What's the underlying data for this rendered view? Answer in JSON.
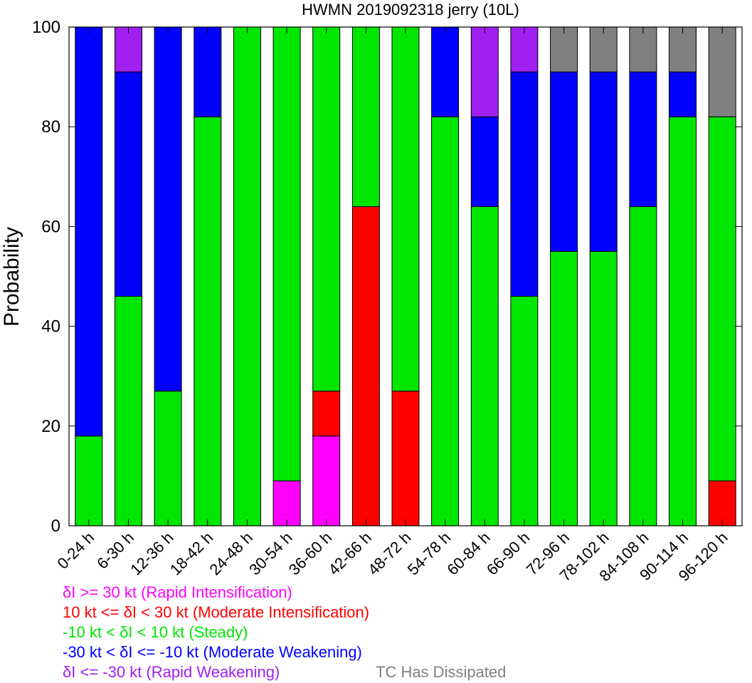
{
  "chart_data": {
    "type": "bar",
    "stacked": true,
    "title": "HWMN 2019092318 jerry (10L)",
    "xlabel": "",
    "ylabel": "Probability",
    "ylim": [
      0,
      100
    ],
    "yticks": [
      0,
      20,
      40,
      60,
      80,
      100
    ],
    "grid": false,
    "categories": [
      "0-24 h",
      "6-30 h",
      "12-36 h",
      "18-42 h",
      "24-48 h",
      "30-54 h",
      "36-60 h",
      "42-66 h",
      "48-72 h",
      "54-78 h",
      "60-84 h",
      "66-90 h",
      "72-96 h",
      "78-102 h",
      "84-108 h",
      "90-114 h",
      "96-120 h"
    ],
    "series": [
      {
        "key": "ri",
        "color": "#ff00ff",
        "values": [
          0,
          0,
          0,
          0,
          0,
          9,
          18,
          0,
          0,
          0,
          0,
          0,
          0,
          0,
          0,
          0,
          0
        ]
      },
      {
        "key": "mi",
        "color": "#ff0000",
        "values": [
          0,
          0,
          0,
          0,
          0,
          0,
          9,
          64,
          27,
          0,
          0,
          0,
          0,
          0,
          0,
          0,
          9
        ]
      },
      {
        "key": "steady",
        "color": "#00e600",
        "values": [
          18,
          46,
          27,
          82,
          100,
          91,
          73,
          36,
          73,
          82,
          64,
          46,
          55,
          55,
          64,
          82,
          73
        ]
      },
      {
        "key": "mw",
        "color": "#0000ff",
        "values": [
          82,
          45,
          73,
          18,
          0,
          0,
          0,
          0,
          0,
          18,
          18,
          45,
          36,
          36,
          27,
          9,
          0
        ]
      },
      {
        "key": "rw",
        "color": "#a020f0",
        "values": [
          0,
          9,
          0,
          0,
          0,
          0,
          0,
          0,
          0,
          0,
          18,
          9,
          0,
          0,
          0,
          0,
          0
        ]
      },
      {
        "key": "dissipated",
        "color": "#808080",
        "values": [
          0,
          0,
          0,
          0,
          0,
          0,
          0,
          0,
          0,
          0,
          0,
          0,
          9,
          9,
          9,
          9,
          18
        ]
      }
    ]
  },
  "legend": {
    "ri": {
      "pre": "",
      "post": "I >= 30 kt (Rapid Intensification)",
      "color": "#ff00ff"
    },
    "mi": {
      "pre": "10 kt <= ",
      "post": "I < 30 kt (Moderate Intensification)",
      "color": "#ff0000"
    },
    "steady": {
      "pre": "-10 kt < ",
      "post": "I < 10 kt (Steady)",
      "color": "#00e600"
    },
    "mw": {
      "pre": "-30 kt < ",
      "post": "I <= -10 kt (Moderate Weakening)",
      "color": "#0000ff"
    },
    "rw": {
      "pre": "",
      "post": "I <= -30 kt (Rapid Weakening)",
      "color": "#a020f0"
    },
    "dissipated": {
      "text": "TC Has Dissipated",
      "color": "#808080"
    },
    "delta_symbol": "δ"
  }
}
